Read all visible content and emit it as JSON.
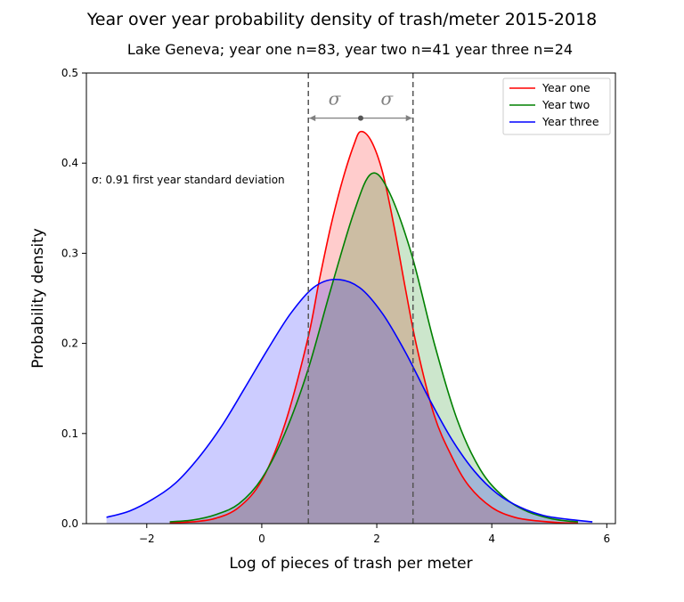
{
  "chart_data": {
    "type": "area",
    "title": "Year over year probability density of trash/meter 2015-2018",
    "subtitle": "Lake Geneva; year one n=83, year two n=41 year three n=24",
    "xlabel": "Log of pieces of trash per meter",
    "ylabel": "Probability density",
    "xlim": [
      -3.05,
      6.15
    ],
    "ylim": [
      0,
      0.5
    ],
    "x_ticks": [
      -2,
      0,
      2,
      4,
      6
    ],
    "x_tick_labels": [
      "−2",
      "0",
      "2",
      "4",
      "6"
    ],
    "y_ticks": [
      0.0,
      0.1,
      0.2,
      0.3,
      0.4,
      0.5
    ],
    "y_tick_labels": [
      "0.0",
      "0.1",
      "0.2",
      "0.3",
      "0.4",
      "0.5"
    ],
    "legend_position": "top-right",
    "grid": false,
    "series": [
      {
        "name": "Year one",
        "color": "#ff0000",
        "fill": "#ff0000",
        "x": [
          -1.6,
          -1.2,
          -0.8,
          -0.4,
          0.0,
          0.4,
          0.8,
          1.0,
          1.2,
          1.4,
          1.6,
          1.72,
          1.9,
          2.1,
          2.3,
          2.5,
          2.7,
          3.0,
          3.3,
          3.6,
          4.0,
          4.4,
          4.8,
          5.2,
          5.5
        ],
        "y": [
          0.001,
          0.002,
          0.006,
          0.018,
          0.048,
          0.11,
          0.205,
          0.27,
          0.33,
          0.38,
          0.42,
          0.435,
          0.425,
          0.39,
          0.33,
          0.26,
          0.195,
          0.12,
          0.075,
          0.042,
          0.018,
          0.007,
          0.003,
          0.001,
          0.0005
        ]
      },
      {
        "name": "Year two",
        "color": "#008000",
        "fill": "#008000",
        "x": [
          -1.6,
          -1.2,
          -0.8,
          -0.4,
          0.0,
          0.4,
          0.8,
          1.2,
          1.6,
          1.9,
          2.2,
          2.6,
          3.0,
          3.4,
          3.8,
          4.2,
          4.6,
          5.0,
          5.3,
          5.5
        ],
        "y": [
          0.002,
          0.004,
          0.01,
          0.022,
          0.05,
          0.1,
          0.17,
          0.26,
          0.345,
          0.388,
          0.37,
          0.3,
          0.2,
          0.115,
          0.06,
          0.03,
          0.014,
          0.006,
          0.003,
          0.002
        ]
      },
      {
        "name": "Year three",
        "color": "#0000ff",
        "fill": "#0000ff",
        "x": [
          -2.7,
          -2.3,
          -1.9,
          -1.5,
          -1.1,
          -0.7,
          -0.3,
          0.1,
          0.5,
          0.9,
          1.28,
          1.7,
          2.1,
          2.5,
          2.9,
          3.3,
          3.7,
          4.1,
          4.5,
          4.9,
          5.3,
          5.75
        ],
        "y": [
          0.007,
          0.014,
          0.027,
          0.045,
          0.073,
          0.108,
          0.15,
          0.193,
          0.233,
          0.262,
          0.271,
          0.262,
          0.233,
          0.19,
          0.14,
          0.094,
          0.058,
          0.033,
          0.018,
          0.009,
          0.005,
          0.002
        ]
      }
    ],
    "vlines": [
      0.81,
      2.63
    ],
    "center_marker": {
      "x": 1.72,
      "y": 0.45
    },
    "sigma_labels": [
      "σ",
      "σ"
    ],
    "annotation": "σ: 0.91 first year standard deviation"
  }
}
